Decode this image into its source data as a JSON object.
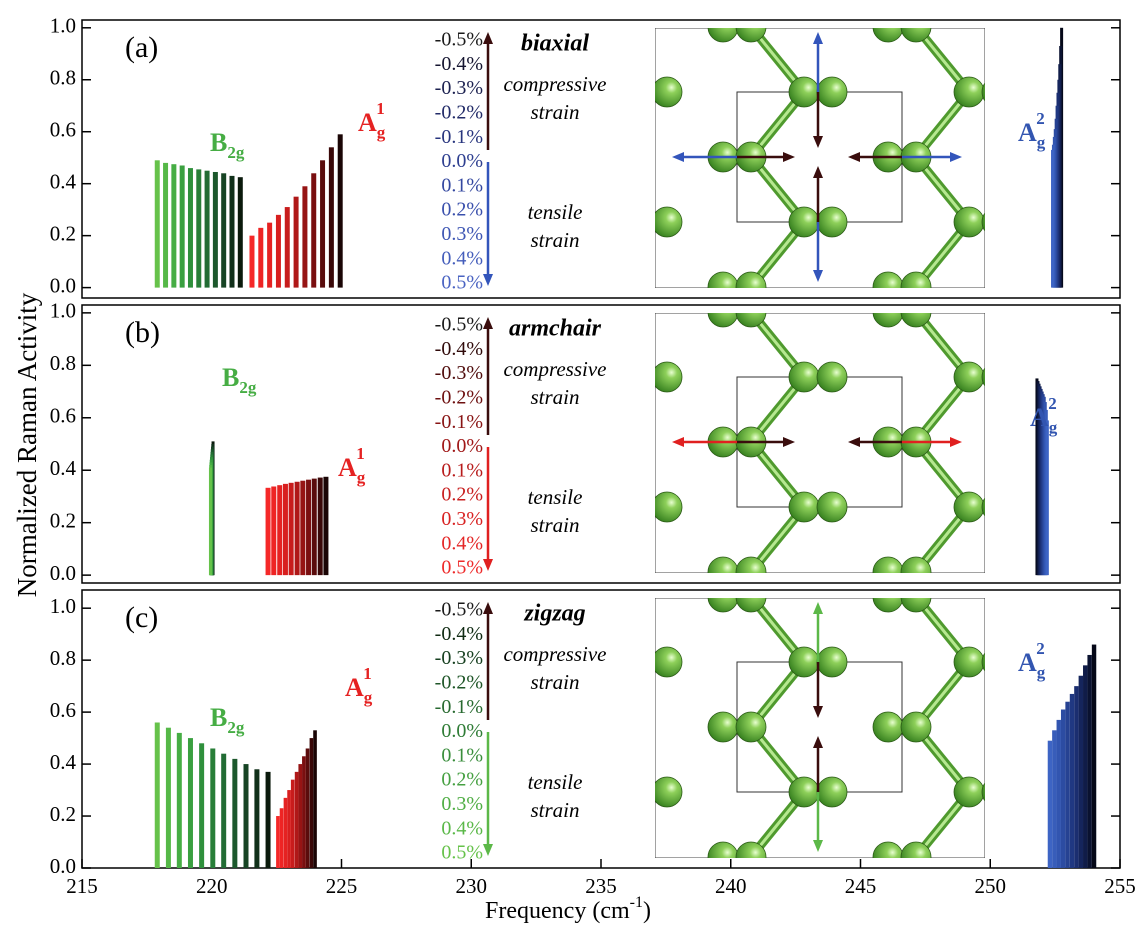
{
  "figure": {
    "y_label": "Normalized Raman Activity",
    "x_label": {
      "main": "Frequency (cm",
      "sup": "-1",
      "end": ")"
    }
  },
  "chart_data": [
    {
      "type": "bar",
      "label": "(a)",
      "mode": "biaxial",
      "compressive_label": [
        "compressive",
        "strain"
      ],
      "tensile_label": [
        "tensile",
        "strain"
      ],
      "strain_levels": [
        "-0.5%",
        "-0.4%",
        "-0.3%",
        "-0.2%",
        "-0.1%",
        "0.0%",
        "0.1%",
        "0.2%",
        "0.3%",
        "0.4%",
        "0.5%"
      ],
      "strain_colors": [
        "#1a1a1a",
        "#151530",
        "#1c2150",
        "#222b68",
        "#28357e",
        "#2e3f90",
        "#3448a0",
        "#3a50ac",
        "#3f57b4",
        "#445dbb",
        "#4a63c2"
      ],
      "compressive_color": "#3a0d0d",
      "tensile_color": "#3355bb",
      "xlim": [
        215,
        255
      ],
      "ylim": [
        -0.04,
        1.03
      ],
      "yticks": [
        {
          "value": 0,
          "label": "0.0"
        },
        0.2,
        0.4,
        0.6,
        0.8,
        {
          "value": 1,
          "label": "1.0"
        }
      ],
      "series": [
        {
          "name": {
            "main": "B",
            "sub": "2g"
          },
          "x": [
            221.1,
            220.78,
            220.46,
            220.14,
            219.82,
            219.5,
            219.18,
            218.86,
            218.54,
            218.22,
            217.9
          ],
          "values": [
            0.425,
            0.43,
            0.44,
            0.445,
            0.45,
            0.455,
            0.46,
            0.47,
            0.475,
            0.48,
            0.49
          ],
          "colors": [
            "#0b1a0c",
            "#11301a",
            "#174424",
            "#1c582c",
            "#226c34",
            "#287e38",
            "#2f903c",
            "#3aa040",
            "#46ad44",
            "#55b847",
            "#66c24a"
          ]
        },
        {
          "name": {
            "main": "A",
            "sub": "g",
            "sup": "1"
          },
          "x": [
            224.95,
            224.61,
            224.27,
            223.93,
            223.59,
            223.25,
            222.91,
            222.57,
            222.23,
            221.89,
            221.55
          ],
          "values": [
            0.59,
            0.54,
            0.49,
            0.44,
            0.39,
            0.35,
            0.31,
            0.28,
            0.25,
            0.23,
            0.2
          ],
          "colors": [
            "#1a0505",
            "#3a0808",
            "#5a0c0c",
            "#7a0f10",
            "#961414",
            "#b01818",
            "#c81c1c",
            "#d81f1f",
            "#e52222",
            "#ee2424",
            "#f52828"
          ]
        },
        {
          "name": {
            "main": "A",
            "sub": "g",
            "sup": "2"
          },
          "x": [
            252.75,
            252.715,
            252.68,
            252.645,
            252.61,
            252.575,
            252.54,
            252.505,
            252.47,
            252.435,
            252.4
          ],
          "values": [
            1.0,
            0.93,
            0.86,
            0.8,
            0.75,
            0.7,
            0.65,
            0.61,
            0.58,
            0.55,
            0.53
          ],
          "colors": [
            "#050818",
            "#0a1230",
            "#101c48",
            "#15255c",
            "#1b2e70",
            "#203882",
            "#264292",
            "#2c4ca2",
            "#3255b0",
            "#385dba",
            "#3d64c4"
          ]
        }
      ]
    },
    {
      "type": "bar",
      "label": "(b)",
      "mode": "armchair",
      "compressive_label": [
        "compressive",
        "strain"
      ],
      "tensile_label": [
        "tensile",
        "strain"
      ],
      "strain_levels": [
        "-0.5%",
        "-0.4%",
        "-0.3%",
        "-0.2%",
        "-0.1%",
        "0.0%",
        "0.1%",
        "0.2%",
        "0.3%",
        "0.4%",
        "0.5%"
      ],
      "strain_colors": [
        "#1a1a1a",
        "#300a0a",
        "#500d0d",
        "#6e1010",
        "#881414",
        "#a01818",
        "#b81c1c",
        "#c81f1f",
        "#d82222",
        "#e42626",
        "#ee2a2a"
      ],
      "compressive_color": "#3a0d0d",
      "tensile_color": "#e02020",
      "xlim": [
        215,
        255
      ],
      "ylim": [
        -0.03,
        1.03
      ],
      "yticks": [
        {
          "value": 0,
          "label": "0.0"
        },
        0.2,
        0.4,
        0.6,
        0.8,
        {
          "value": 1,
          "label": "1.0"
        }
      ],
      "series": [
        {
          "name": {
            "main": "B",
            "sub": "2g"
          },
          "x": [
            220.05,
            220.04,
            220.03,
            220.02,
            220.01,
            220.0,
            219.99,
            219.98,
            219.97,
            219.96,
            219.95
          ],
          "values": [
            0.51,
            0.5,
            0.49,
            0.48,
            0.47,
            0.46,
            0.45,
            0.44,
            0.43,
            0.42,
            0.41
          ],
          "colors": [
            "#0b1a0c",
            "#11301a",
            "#174424",
            "#1c582c",
            "#226c34",
            "#287e38",
            "#2f903c",
            "#3aa040",
            "#46ad44",
            "#55b847",
            "#66c24a"
          ]
        },
        {
          "name": {
            "main": "A",
            "sub": "g",
            "sup": "1"
          },
          "x": [
            224.4,
            224.18,
            223.95,
            223.73,
            223.51,
            223.29,
            223.06,
            222.84,
            222.62,
            222.39,
            222.17
          ],
          "values": [
            0.375,
            0.372,
            0.368,
            0.364,
            0.36,
            0.356,
            0.352,
            0.348,
            0.343,
            0.338,
            0.333
          ],
          "colors": [
            "#1a0505",
            "#3a0808",
            "#5a0c0c",
            "#7a0f10",
            "#961414",
            "#b01818",
            "#c81c1c",
            "#d81f1f",
            "#e52222",
            "#ee2424",
            "#f52828"
          ]
        },
        {
          "name": {
            "main": "A",
            "sub": "g",
            "sup": "2"
          },
          "x": [
            251.8,
            251.84,
            251.88,
            251.92,
            251.96,
            252.0,
            252.04,
            252.08,
            252.12,
            252.16,
            252.2
          ],
          "values": [
            0.75,
            0.74,
            0.73,
            0.72,
            0.71,
            0.7,
            0.69,
            0.68,
            0.66,
            0.63,
            0.59
          ],
          "colors": [
            "#050818",
            "#0a1230",
            "#101c48",
            "#15255c",
            "#1b2e70",
            "#203882",
            "#264292",
            "#2c4ca2",
            "#3255b0",
            "#385dba",
            "#3d64c4"
          ]
        }
      ]
    },
    {
      "type": "bar",
      "label": "(c)",
      "mode": "zigzag",
      "compressive_label": [
        "compressive",
        "strain"
      ],
      "tensile_label": [
        "tensile",
        "strain"
      ],
      "strain_levels": [
        "-0.5%",
        "-0.4%",
        "-0.3%",
        "-0.2%",
        "-0.1%",
        "0.0%",
        "0.1%",
        "0.2%",
        "0.3%",
        "0.4%",
        "0.5%"
      ],
      "strain_colors": [
        "#1a1a1a",
        "#0f2a12",
        "#174020",
        "#1f5628",
        "#286a30",
        "#2f7c36",
        "#3a8e3c",
        "#46a042",
        "#50ae45",
        "#5ab848",
        "#66c24a"
      ],
      "compressive_color": "#3a0d0d",
      "tensile_color": "#5cb848",
      "xlim": [
        215,
        255
      ],
      "ylim": [
        0,
        1.07
      ],
      "yticks": [
        {
          "value": 0,
          "label": "0.0"
        },
        0.2,
        0.4,
        0.6,
        0.8,
        {
          "value": 1,
          "label": "1.0"
        }
      ],
      "xticks": [
        215,
        220,
        225,
        230,
        235,
        240,
        245,
        250,
        255
      ],
      "series": [
        {
          "name": {
            "main": "B",
            "sub": "2g"
          },
          "x": [
            222.17,
            221.74,
            221.32,
            220.89,
            220.46,
            220.04,
            219.61,
            219.18,
            218.75,
            218.33,
            217.9
          ],
          "values": [
            0.37,
            0.38,
            0.4,
            0.42,
            0.44,
            0.46,
            0.48,
            0.5,
            0.52,
            0.54,
            0.56
          ],
          "colors": [
            "#0b1a0c",
            "#11301a",
            "#174424",
            "#1c582c",
            "#226c34",
            "#287e38",
            "#2f903c",
            "#3aa040",
            "#46ad44",
            "#55b847",
            "#66c24a"
          ]
        },
        {
          "name": {
            "main": "A",
            "sub": "g",
            "sup": "1"
          },
          "x": [
            223.98,
            223.84,
            223.69,
            223.55,
            223.41,
            223.27,
            223.12,
            222.98,
            222.84,
            222.69,
            222.55
          ],
          "values": [
            0.53,
            0.5,
            0.46,
            0.43,
            0.4,
            0.37,
            0.34,
            0.3,
            0.27,
            0.23,
            0.2
          ],
          "colors": [
            "#1a0505",
            "#3a0808",
            "#5a0c0c",
            "#7a0f10",
            "#961414",
            "#b01818",
            "#c81c1c",
            "#d81f1f",
            "#e52222",
            "#ee2424",
            "#f52828"
          ]
        },
        {
          "name": {
            "main": "A",
            "sub": "g",
            "sup": "2"
          },
          "x": [
            254.0,
            253.83,
            253.66,
            253.49,
            253.32,
            253.15,
            252.98,
            252.81,
            252.64,
            252.47,
            252.3
          ],
          "values": [
            0.86,
            0.82,
            0.78,
            0.74,
            0.7,
            0.67,
            0.64,
            0.61,
            0.57,
            0.53,
            0.49
          ],
          "colors": [
            "#050818",
            "#0a1230",
            "#101c48",
            "#15255c",
            "#1b2e70",
            "#203882",
            "#264292",
            "#2c4ca2",
            "#3255b0",
            "#385dba",
            "#3d64c4"
          ]
        }
      ]
    }
  ]
}
